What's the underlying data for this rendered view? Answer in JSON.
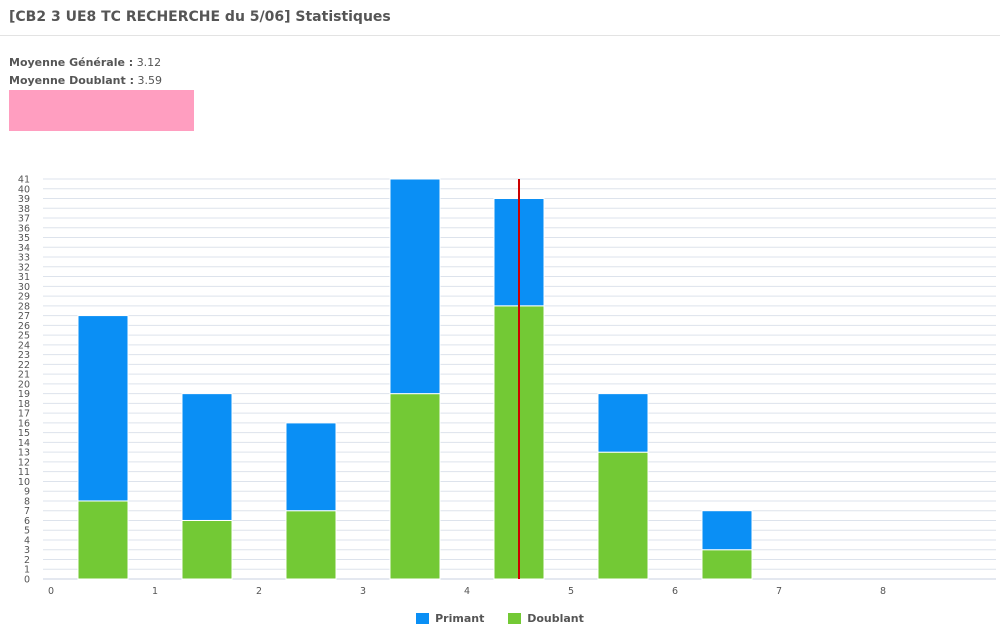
{
  "header": {
    "title": "[CB2 3 UE8 TC RECHERCHE du 5/06] Statistiques"
  },
  "stats": {
    "general_label": "Moyenne Générale :",
    "general_value": "3.12",
    "doublant_label": "Moyenne Doublant :",
    "doublant_value": "3.59"
  },
  "colors": {
    "primant": "#0a8ff5",
    "doublant": "#73c935",
    "mean_line": "#cc0000",
    "pink_box": "#ff9ec0",
    "grid": "#dde3ec"
  },
  "chart_data": {
    "type": "bar",
    "stacked": true,
    "categories": [
      "0",
      "1",
      "2",
      "3",
      "4",
      "5",
      "6"
    ],
    "series": [
      {
        "name": "Doublant",
        "values": [
          8,
          6,
          7,
          19,
          28,
          13,
          3
        ]
      },
      {
        "name": "Primant",
        "values": [
          19,
          13,
          9,
          22,
          11,
          6,
          4
        ]
      }
    ],
    "x_ticks": [
      "0",
      "1",
      "2",
      "3",
      "4",
      "5",
      "6",
      "7",
      "8"
    ],
    "xlim": [
      0,
      9
    ],
    "ylim": [
      0,
      41
    ],
    "y_ticks": [
      "0",
      "1",
      "2",
      "3",
      "4",
      "5",
      "6",
      "7",
      "8",
      "9",
      "10",
      "11",
      "12",
      "13",
      "14",
      "15",
      "16",
      "17",
      "18",
      "19",
      "20",
      "21",
      "22",
      "23",
      "24",
      "25",
      "26",
      "27",
      "28",
      "29",
      "30",
      "31",
      "32",
      "33",
      "34",
      "35",
      "36",
      "37",
      "38",
      "39",
      "40",
      "41"
    ],
    "mean_line_x": 4.5,
    "grid": true,
    "legend_position": "bottom-center",
    "legend": [
      "Primant",
      "Doublant"
    ]
  }
}
